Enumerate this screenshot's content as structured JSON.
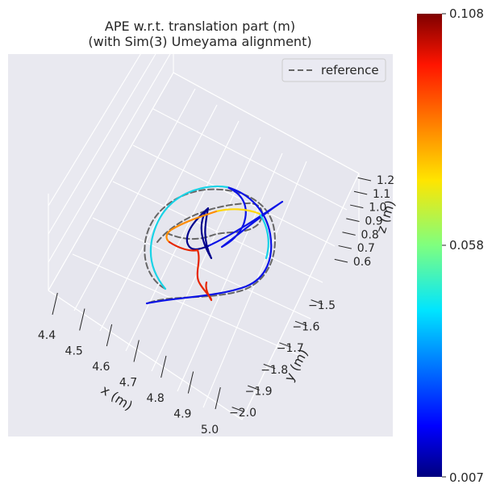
{
  "chart_data": {
    "type": "line",
    "title": "APE w.r.t. translation part (m)",
    "subtitle": "(with Sim(3) Umeyama alignment)",
    "xlabel": "x (m)",
    "ylabel": "y (m)",
    "zlabel": "z (m)",
    "x_ticks": [
      "4.4",
      "4.5",
      "4.6",
      "4.7",
      "4.8",
      "4.9",
      "5.0"
    ],
    "y_ticks": [
      "−1.5",
      "−1.6",
      "−1.7",
      "−1.8",
      "−1.9",
      "−2.0"
    ],
    "z_ticks": [
      "1.2",
      "1.1",
      "1.0",
      "0.9",
      "0.8",
      "0.7",
      "0.6"
    ],
    "legend": {
      "placement": "top-right",
      "entries": [
        {
          "label": "reference",
          "style": "dashed",
          "color": "#666666"
        }
      ]
    },
    "colorbar": {
      "colormap": "jet",
      "min_label": "0.007",
      "mid_label": "0.058",
      "max_label": "0.108",
      "min": 0.007,
      "max": 0.108
    },
    "grid": true,
    "background": "#e9e9f0",
    "series": [
      {
        "name": "reference",
        "style": "dashed",
        "color": "#666666"
      }
    ]
  }
}
